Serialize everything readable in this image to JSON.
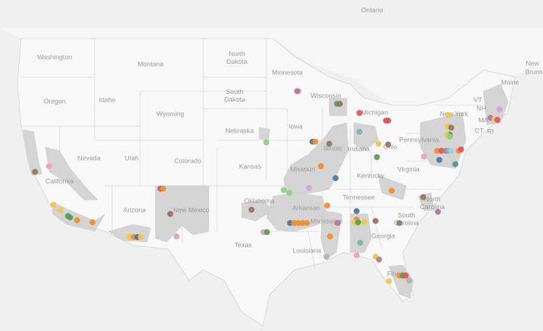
{
  "map": {
    "labels": [
      "Ontario",
      "Washington",
      "Montana",
      [
        "North",
        "Dakota"
      ],
      "Minnesota",
      "Wisconsin",
      "Michigan",
      [
        "South",
        "Dakota"
      ],
      "Oregon",
      "Idaho",
      "Wyoming",
      "Nebraska",
      "Iowa",
      "Illinois",
      "Indiana",
      "Ohio",
      "Pennsylvania",
      "New York",
      "VT",
      "Maine",
      "NH",
      "MA",
      "CT",
      "RI",
      "New",
      "Bruns",
      "Nevada",
      "Utah",
      "Colorado",
      "Kansas",
      "Missouri",
      "Kentucky",
      "Virginia",
      "California",
      "Arizona",
      "New Mexico",
      "Oklahoma",
      "Arkansas",
      "Tennessee",
      [
        "North",
        "Carolina"
      ],
      [
        "South",
        "Carolina"
      ],
      "Mississippi",
      "Georgia",
      "Texas",
      "Louisiana",
      "Florida"
    ]
  }
}
